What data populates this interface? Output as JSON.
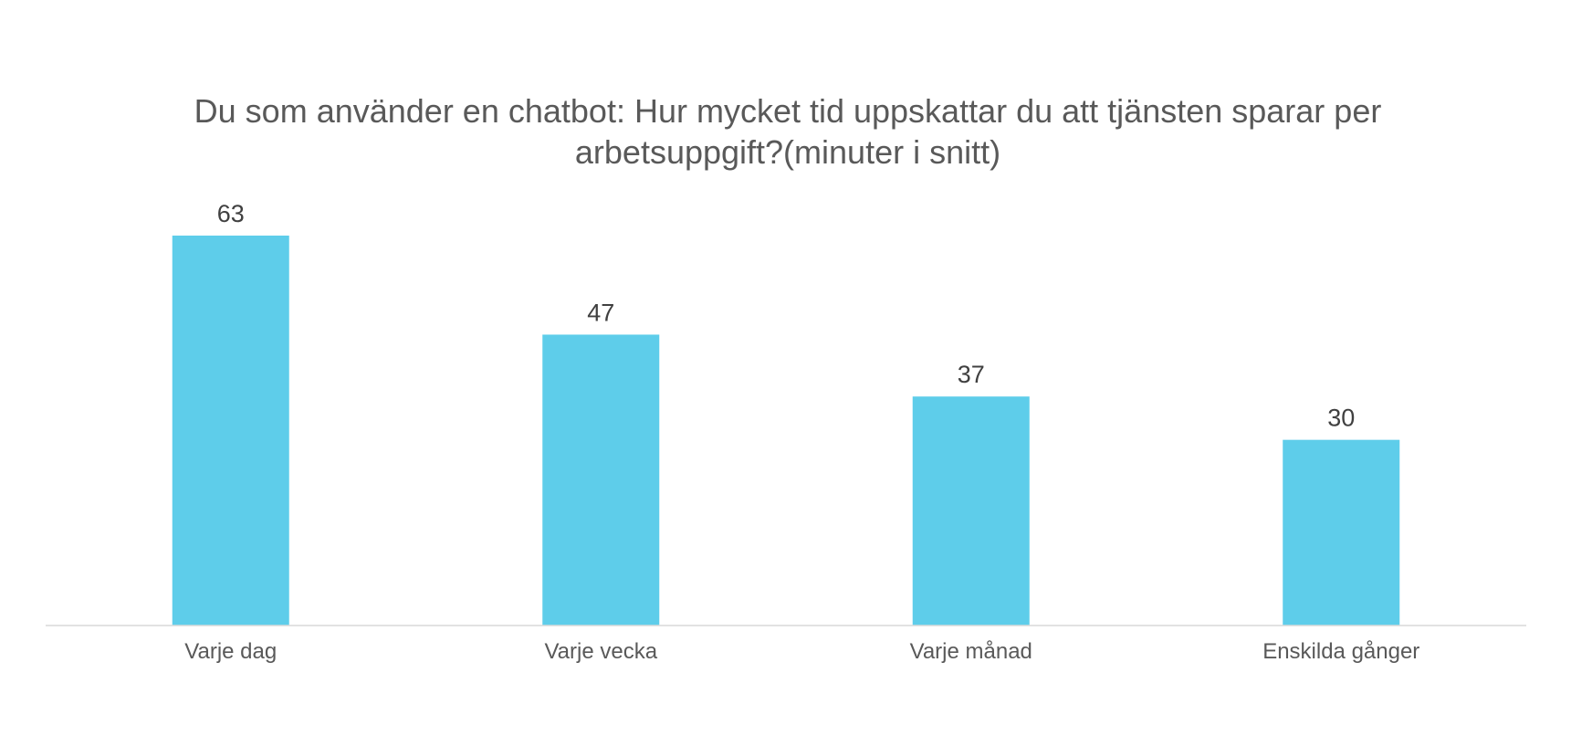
{
  "chart_data": {
    "type": "bar",
    "title_lines": [
      "Du som använder en chatbot: Hur mycket tid uppskattar du att tjänsten sparar per",
      "arbetsuppgift?(minuter i snitt)"
    ],
    "categories": [
      "Varje dag",
      "Varje vecka",
      "Varje månad",
      "Enskilda gånger"
    ],
    "values": [
      63,
      47,
      37,
      30
    ],
    "data_labels": [
      "63",
      "47",
      "37",
      "30"
    ],
    "ylim": [
      0,
      63
    ],
    "grid": false,
    "legend": "none",
    "xlabel": "",
    "ylabel": "",
    "bar_color": "#5ECDEA",
    "axis_color": "#D9D9D9"
  }
}
